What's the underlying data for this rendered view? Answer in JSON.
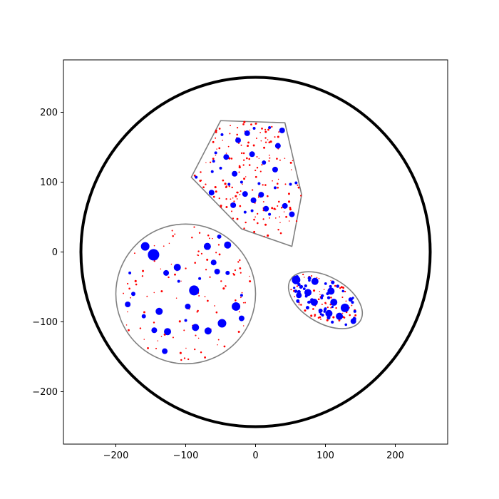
{
  "chart_data": {
    "type": "scatter",
    "title": "",
    "xlabel": "",
    "ylabel": "",
    "xlim": [
      -275,
      275
    ],
    "ylim": [
      -275,
      275
    ],
    "grid": false,
    "legend": "none",
    "xticks": [
      -200,
      -100,
      0,
      100,
      200
    ],
    "yticks": [
      -200,
      -100,
      0,
      100,
      200
    ],
    "xtick_labels": [
      "−200",
      "−100",
      "0",
      "100",
      "200"
    ],
    "ytick_labels": [
      "−200",
      "−100",
      "0",
      "100",
      "200"
    ],
    "colors": {
      "blue": "#0000ff",
      "red": "#ff0000",
      "outer": "#000000",
      "region": "#808080"
    },
    "outer_circle": {
      "cx": 0,
      "cy": 0,
      "r": 250
    },
    "regions": [
      {
        "name": "polygon",
        "shape": "polygon",
        "vertices": [
          [
            -50,
            188
          ],
          [
            42,
            185
          ],
          [
            66,
            82
          ],
          [
            52,
            8
          ],
          [
            -20,
            33
          ],
          [
            -92,
            107
          ]
        ],
        "blue_points": [
          [
            -48,
            168
          ],
          [
            -12,
            170
          ],
          [
            -2,
            177
          ],
          [
            38,
            174
          ],
          [
            -25,
            160
          ],
          [
            32,
            152
          ],
          [
            -57,
            142
          ],
          [
            -42,
            136
          ],
          [
            -5,
            140
          ],
          [
            12,
            128
          ],
          [
            28,
            118
          ],
          [
            -30,
            112
          ],
          [
            -62,
            115
          ],
          [
            -20,
            100
          ],
          [
            5,
            98
          ],
          [
            28,
            92
          ],
          [
            -38,
            97
          ],
          [
            -63,
            85
          ],
          [
            -15,
            83
          ],
          [
            8,
            82
          ],
          [
            50,
            97
          ],
          [
            -32,
            67
          ],
          [
            -3,
            74
          ],
          [
            15,
            62
          ],
          [
            42,
            66
          ],
          [
            -15,
            57
          ],
          [
            -5,
            59
          ],
          [
            52,
            54
          ],
          [
            58,
            99
          ],
          [
            -85,
            107
          ],
          [
            20,
            54
          ],
          [
            -60,
            130
          ],
          [
            20,
            178
          ],
          [
            -50,
            120
          ]
        ],
        "blue_sizes": [
          2,
          4,
          2,
          4,
          4,
          4,
          2,
          4,
          4,
          3,
          4,
          4,
          2,
          2,
          2,
          2,
          2,
          4,
          4,
          4,
          2,
          4,
          4,
          4,
          4,
          2,
          2,
          4,
          2,
          2,
          2,
          2,
          2,
          2
        ],
        "red_count": 170
      },
      {
        "name": "circle",
        "shape": "circle",
        "cx": -100,
        "cy": -60,
        "r": 100,
        "blue_points": [
          [
            -158,
            8
          ],
          [
            -146,
            -4
          ],
          [
            -69,
            8
          ],
          [
            -40,
            10
          ],
          [
            -52,
            22
          ],
          [
            -128,
            -30
          ],
          [
            -112,
            -22
          ],
          [
            -60,
            -15
          ],
          [
            -40,
            -30
          ],
          [
            -88,
            -55
          ],
          [
            -175,
            -60
          ],
          [
            -183,
            -75
          ],
          [
            -138,
            -85
          ],
          [
            -160,
            -92
          ],
          [
            -97,
            -78
          ],
          [
            -28,
            -78
          ],
          [
            -20,
            -95
          ],
          [
            -48,
            -102
          ],
          [
            -86,
            -108
          ],
          [
            -68,
            -113
          ],
          [
            -126,
            -114
          ],
          [
            -145,
            -112
          ],
          [
            -130,
            -142
          ],
          [
            -55,
            -28
          ],
          [
            -80,
            -38
          ],
          [
            -20,
            -62
          ],
          [
            -110,
            -42
          ],
          [
            -100,
            -98
          ],
          [
            -180,
            -30
          ]
        ],
        "blue_sizes": [
          6,
          8,
          5,
          5,
          3,
          4,
          5,
          4,
          3,
          7,
          3,
          4,
          5,
          3,
          4,
          6,
          4,
          6,
          5,
          5,
          5,
          4,
          4,
          4,
          2,
          2,
          2,
          2,
          2
        ],
        "red_count": 110
      },
      {
        "name": "ellipse",
        "shape": "ellipse",
        "cx": 100,
        "cy": -69,
        "rx": 58,
        "ry": 33,
        "angle_deg": -30,
        "blue_points": [
          [
            58,
            -40
          ],
          [
            85,
            -42
          ],
          [
            75,
            -58
          ],
          [
            108,
            -56
          ],
          [
            62,
            -62
          ],
          [
            84,
            -72
          ],
          [
            112,
            -72
          ],
          [
            128,
            -80
          ],
          [
            105,
            -88
          ],
          [
            120,
            -92
          ],
          [
            140,
            -99
          ],
          [
            93,
            -84
          ],
          [
            136,
            -68
          ]
        ],
        "blue_sizes": [
          6,
          5,
          5,
          5,
          4,
          5,
          5,
          6,
          5,
          5,
          4,
          3,
          3
        ],
        "small_blue_count": 45,
        "red_count": 75
      }
    ]
  }
}
